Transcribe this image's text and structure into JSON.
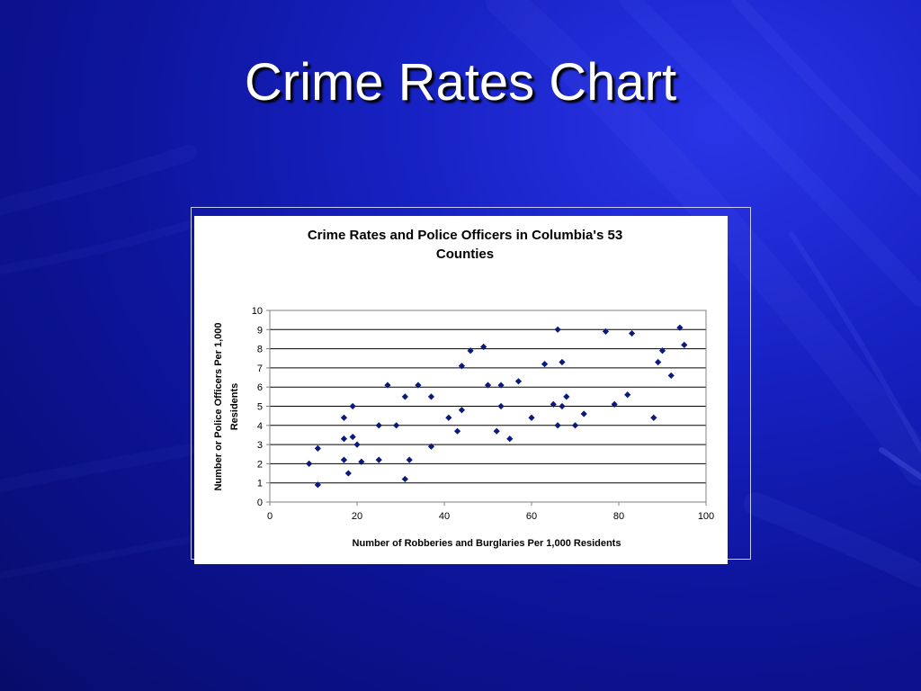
{
  "slide": {
    "title": "Crime Rates Chart"
  },
  "chart_data": {
    "type": "scatter",
    "title_lines": [
      "Crime Rates and Police Officers in Columbia's 53",
      "Counties"
    ],
    "xlabel": "Number of Robberies and Burglaries Per 1,000 Residents",
    "ylabel_lines": [
      "Number or Police Officers Per 1,000",
      "Residents"
    ],
    "xlim": [
      0,
      100
    ],
    "ylim": [
      0,
      10
    ],
    "xticks": [
      0,
      20,
      40,
      60,
      80,
      100
    ],
    "yticks": [
      0,
      1,
      2,
      3,
      4,
      5,
      6,
      7,
      8,
      9,
      10
    ],
    "grid": "horizontal",
    "legend": "none",
    "marker_color": "#0a1a7a",
    "points": [
      {
        "x": 9,
        "y": 2.0
      },
      {
        "x": 11,
        "y": 2.8
      },
      {
        "x": 11,
        "y": 0.9
      },
      {
        "x": 17,
        "y": 4.4
      },
      {
        "x": 17,
        "y": 3.3
      },
      {
        "x": 17,
        "y": 2.2
      },
      {
        "x": 18,
        "y": 1.5
      },
      {
        "x": 19,
        "y": 5.0
      },
      {
        "x": 19,
        "y": 3.4
      },
      {
        "x": 20,
        "y": 3.0
      },
      {
        "x": 21,
        "y": 2.1
      },
      {
        "x": 25,
        "y": 4.0
      },
      {
        "x": 25,
        "y": 2.2
      },
      {
        "x": 27,
        "y": 6.1
      },
      {
        "x": 29,
        "y": 4.0
      },
      {
        "x": 31,
        "y": 5.5
      },
      {
        "x": 31,
        "y": 1.2
      },
      {
        "x": 32,
        "y": 2.2
      },
      {
        "x": 34,
        "y": 6.1
      },
      {
        "x": 37,
        "y": 5.5
      },
      {
        "x": 37,
        "y": 2.9
      },
      {
        "x": 41,
        "y": 4.4
      },
      {
        "x": 43,
        "y": 3.7
      },
      {
        "x": 44,
        "y": 7.1
      },
      {
        "x": 44,
        "y": 4.8
      },
      {
        "x": 46,
        "y": 7.9
      },
      {
        "x": 49,
        "y": 8.1
      },
      {
        "x": 50,
        "y": 6.1
      },
      {
        "x": 52,
        "y": 3.7
      },
      {
        "x": 53,
        "y": 6.1
      },
      {
        "x": 53,
        "y": 5.0
      },
      {
        "x": 55,
        "y": 3.3
      },
      {
        "x": 57,
        "y": 6.3
      },
      {
        "x": 60,
        "y": 4.4
      },
      {
        "x": 63,
        "y": 7.2
      },
      {
        "x": 65,
        "y": 5.1
      },
      {
        "x": 66,
        "y": 9.0
      },
      {
        "x": 66,
        "y": 4.0
      },
      {
        "x": 67,
        "y": 7.3
      },
      {
        "x": 67,
        "y": 5.0
      },
      {
        "x": 68,
        "y": 5.5
      },
      {
        "x": 70,
        "y": 4.0
      },
      {
        "x": 72,
        "y": 4.6
      },
      {
        "x": 77,
        "y": 8.9
      },
      {
        "x": 79,
        "y": 5.1
      },
      {
        "x": 82,
        "y": 5.6
      },
      {
        "x": 83,
        "y": 8.8
      },
      {
        "x": 88,
        "y": 4.4
      },
      {
        "x": 89,
        "y": 7.3
      },
      {
        "x": 90,
        "y": 7.9
      },
      {
        "x": 92,
        "y": 6.6
      },
      {
        "x": 94,
        "y": 9.1
      },
      {
        "x": 95,
        "y": 8.2
      }
    ]
  }
}
